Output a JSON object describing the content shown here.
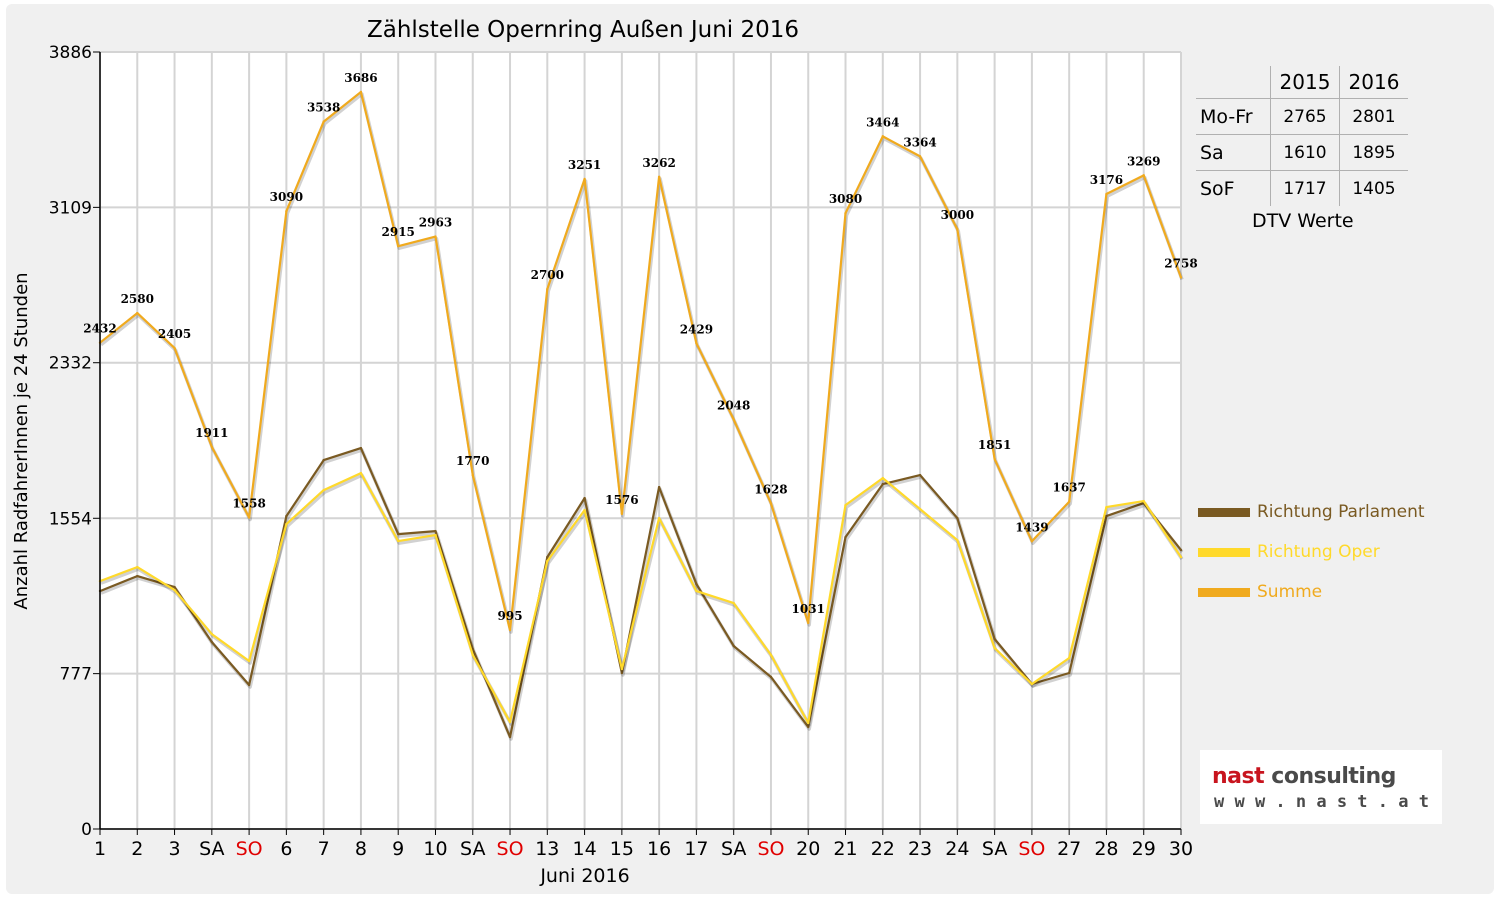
{
  "chart_data": {
    "type": "line",
    "title": "Zählstelle Opernring Außen Juni 2016",
    "xlabel": "Juni 2016",
    "ylabel": "Anzahl RadfahrerInnen je 24 Stunden",
    "ylim": [
      0,
      3886
    ],
    "yticks": [
      "0",
      "777",
      "1554",
      "2332",
      "3109",
      "3886"
    ],
    "grid": true,
    "legend_position": "right",
    "x": [
      "1",
      "2",
      "3",
      "SA",
      "SO",
      "6",
      "7",
      "8",
      "9",
      "10",
      "SA",
      "SO",
      "13",
      "14",
      "15",
      "16",
      "17",
      "SA",
      "SO",
      "20",
      "21",
      "22",
      "23",
      "24",
      "SA",
      "SO",
      "27",
      "28",
      "29",
      "30"
    ],
    "x_colors": [
      "#000000",
      "#000000",
      "#000000",
      "#000000",
      "#e00000",
      "#000000",
      "#000000",
      "#000000",
      "#000000",
      "#000000",
      "#000000",
      "#e00000",
      "#000000",
      "#000000",
      "#000000",
      "#000000",
      "#000000",
      "#000000",
      "#e00000",
      "#000000",
      "#000000",
      "#000000",
      "#000000",
      "#000000",
      "#000000",
      "#e00000",
      "#000000",
      "#000000",
      "#000000",
      "#000000"
    ],
    "series": [
      {
        "name": "Richtung Parlament",
        "color": "#7a5a22",
        "values": [
          1190,
          1265,
          1210,
          935,
          720,
          1565,
          1845,
          1905,
          1475,
          1490,
          900,
          460,
          1360,
          1655,
          780,
          1710,
          1225,
          915,
          760,
          510,
          1460,
          1725,
          1770,
          1555,
          950,
          725,
          780,
          1565,
          1630,
          1395
        ]
      },
      {
        "name": "Richtung Oper",
        "color": "#ffd92a",
        "values": [
          1240,
          1310,
          1195,
          975,
          840,
          1525,
          1695,
          1780,
          1440,
          1470,
          870,
          535,
          1340,
          1595,
          800,
          1555,
          1190,
          1130,
          870,
          530,
          1620,
          1755,
          1600,
          1445,
          905,
          725,
          855,
          1610,
          1640,
          1360
        ]
      },
      {
        "name": "Summe",
        "color": "#f0aa1e",
        "label_values": true,
        "values": [
          2432,
          2580,
          2405,
          1911,
          1558,
          3090,
          3538,
          3686,
          2915,
          2963,
          1770,
          995,
          2700,
          3251,
          1576,
          3262,
          2429,
          2048,
          1628,
          1031,
          3080,
          3464,
          3364,
          3000,
          1851,
          1439,
          1637,
          3176,
          3269,
          2758
        ]
      }
    ]
  },
  "dtv_table": {
    "columns": [
      "2015",
      "2016"
    ],
    "rows": [
      {
        "label": "Mo-Fr",
        "v2015": "2765",
        "v2016": "2801"
      },
      {
        "label": "Sa",
        "v2015": "1610",
        "v2016": "1895"
      },
      {
        "label": "SoF",
        "v2015": "1717",
        "v2016": "1405"
      }
    ],
    "caption": "DTV Werte"
  },
  "logo": {
    "brand_word1": "nast",
    "brand_word2": "consulting",
    "url": "w w w . n a s t . a t",
    "brand_color": "#c8141e",
    "text_color": "#4a4a4a"
  }
}
